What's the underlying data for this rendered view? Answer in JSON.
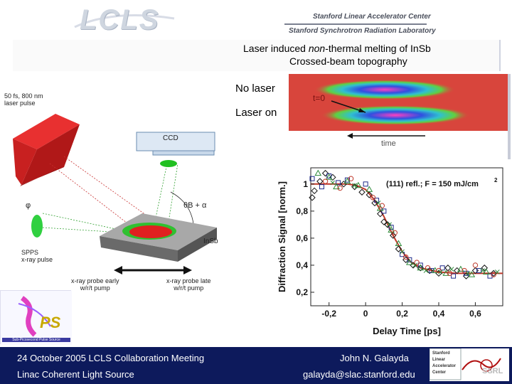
{
  "header": {
    "logo_text": "LCLS",
    "org_line1": "Stanford Linear Accelerator Center",
    "org_line2": "Stanford Synchrotron Radiation Laboratory"
  },
  "title": {
    "line1_prefix": "Laser induced ",
    "line1_em": "non",
    "line1_suffix": "-thermal melting of InSb",
    "line2": "Crossed-beam topography"
  },
  "topography": {
    "label_no_laser": "No laser",
    "label_laser_on": "Laser on",
    "t0_label": "t=0",
    "time_label": "time"
  },
  "diagram": {
    "laser_label": "50 fs, 800 nm\nlaser pulse",
    "ccd_label": "CCD",
    "phi_label": "φ",
    "theta_label": "θB + α",
    "insb_label": "InSb",
    "spps_label": "SPPS\nx-ray pulse",
    "early_label": "x-ray probe early\nw/r/t pump",
    "late_label": "x-ray probe late\nw/r/t pump"
  },
  "chart_data": {
    "type": "scatter",
    "xlabel": "Delay Time [ps]",
    "ylabel": "Diffraction Signal [norm.]",
    "annotation": "(111) refl.; F = 150 mJ/cm",
    "annotation_sup": "2",
    "xlim": [
      -0.3,
      0.75
    ],
    "ylim": [
      0.1,
      1.12
    ],
    "x_ticks": [
      -0.2,
      0,
      0.2,
      0.4,
      0.6
    ],
    "x_tick_labels": [
      "-0,2",
      "0",
      "0,2",
      "0,4",
      "0,6"
    ],
    "y_ticks": [
      0.2,
      0.4,
      0.6,
      0.8,
      1.0
    ],
    "y_tick_labels": [
      "0,2",
      "0,4",
      "0,6",
      "0,8",
      "1"
    ],
    "fit": {
      "x": [
        -0.3,
        -0.2,
        -0.1,
        -0.05,
        0.0,
        0.05,
        0.1,
        0.15,
        0.2,
        0.25,
        0.3,
        0.4,
        0.5,
        0.6,
        0.7,
        0.75
      ],
      "y": [
        1.0,
        1.0,
        1.0,
        0.99,
        0.96,
        0.88,
        0.76,
        0.62,
        0.5,
        0.42,
        0.38,
        0.35,
        0.34,
        0.34,
        0.34,
        0.34
      ],
      "color": "#c0392b"
    },
    "series": [
      {
        "marker": "diamond",
        "color": "#111111",
        "x": [
          -0.32,
          -0.28,
          -0.25,
          -0.22,
          -0.18,
          -0.12,
          -0.06,
          -0.02,
          0.02,
          0.05,
          0.08,
          0.1,
          0.12,
          0.15,
          0.18,
          0.22,
          0.26,
          0.3,
          0.35,
          0.4,
          0.45,
          0.5,
          0.55,
          0.6,
          0.65,
          0.7
        ],
        "y": [
          0.9,
          0.95,
          1.02,
          1.08,
          1.05,
          1.0,
          0.98,
          0.94,
          0.92,
          0.86,
          0.78,
          0.72,
          0.7,
          0.62,
          0.52,
          0.44,
          0.4,
          0.38,
          0.36,
          0.34,
          0.38,
          0.36,
          0.32,
          0.36,
          0.38,
          0.34
        ]
      },
      {
        "marker": "square",
        "color": "#1f2a8a",
        "x": [
          -0.3,
          -0.24,
          -0.2,
          -0.15,
          -0.1,
          0.0,
          0.06,
          0.1,
          0.14,
          0.2,
          0.24,
          0.3,
          0.36,
          0.42,
          0.48,
          0.55,
          0.62,
          0.68
        ],
        "y": [
          1.04,
          0.98,
          1.06,
          1.01,
          1.03,
          1.0,
          0.88,
          0.8,
          0.68,
          0.48,
          0.44,
          0.4,
          0.36,
          0.38,
          0.32,
          0.34,
          0.36,
          0.32
        ]
      },
      {
        "marker": "triangle",
        "color": "#2e8b3a",
        "x": [
          -0.26,
          -0.2,
          -0.16,
          -0.1,
          -0.04,
          0.02,
          0.08,
          0.14,
          0.18,
          0.24,
          0.3,
          0.38,
          0.44,
          0.52,
          0.58,
          0.66
        ],
        "y": [
          1.08,
          1.05,
          0.98,
          1.02,
          0.99,
          0.96,
          0.82,
          0.66,
          0.56,
          0.42,
          0.38,
          0.36,
          0.34,
          0.37,
          0.33,
          0.35
        ]
      },
      {
        "marker": "circle",
        "color": "#c0392b",
        "x": [
          -0.22,
          -0.14,
          -0.08,
          0.04,
          0.09,
          0.16,
          0.22,
          0.28,
          0.34,
          0.4,
          0.46,
          0.54,
          0.6,
          0.7
        ],
        "y": [
          1.02,
          0.97,
          1.04,
          0.9,
          0.84,
          0.64,
          0.46,
          0.42,
          0.38,
          0.36,
          0.34,
          0.36,
          0.4,
          0.33
        ]
      },
      {
        "marker": "cross",
        "color": "#2e8b3a",
        "x": [
          -0.18,
          -0.06,
          0.07,
          0.13,
          0.2,
          0.27,
          0.33,
          0.41,
          0.47,
          0.56,
          0.64,
          0.72
        ],
        "y": [
          1.01,
          0.99,
          0.86,
          0.7,
          0.5,
          0.4,
          0.36,
          0.35,
          0.37,
          0.34,
          0.36,
          0.35
        ]
      }
    ]
  },
  "badge": {
    "lps_caption": "Sub-Picosecond Pulse Source",
    "slac_lines": [
      "Stanford",
      "Linear",
      "Accelerator",
      "Center"
    ],
    "ssrl": "SSRL"
  },
  "footer": {
    "left_line1": "24 October 2005 LCLS Collaboration Meeting",
    "left_line2": "Linac Coherent Light Source",
    "right_line1": "John N. Galayda",
    "right_line2": "galayda@slac.stanford.edu"
  },
  "colors": {
    "footer_bg": "#0d1a5c",
    "laser_red": "#d42020",
    "substrate": "#707070",
    "fit_red": "#c0392b"
  }
}
